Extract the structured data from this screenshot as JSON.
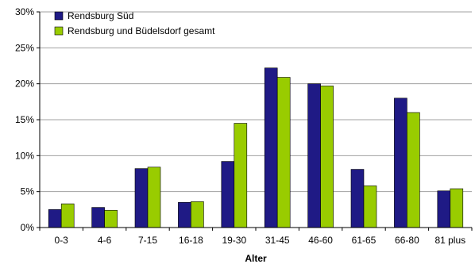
{
  "chart_data": {
    "type": "bar",
    "title": "",
    "xlabel": "Alter",
    "ylabel": "",
    "ylim": [
      0,
      30
    ],
    "y_ticks": [
      0,
      5,
      10,
      15,
      20,
      25,
      30
    ],
    "y_tick_format": "percent",
    "grid": true,
    "legend_position": "top-left",
    "categories": [
      "0-3",
      "4-6",
      "7-15",
      "16-18",
      "19-30",
      "31-45",
      "46-60",
      "61-65",
      "66-80",
      "81 plus"
    ],
    "series": [
      {
        "name": "Rendsburg Süd",
        "color": "#1f1a85",
        "values": [
          2.5,
          2.8,
          8.2,
          3.5,
          9.2,
          22.2,
          20.0,
          8.1,
          18.0,
          5.1
        ]
      },
      {
        "name": "Rendsburg und Büdelsdorf gesamt",
        "color": "#99cc00",
        "values": [
          3.3,
          2.4,
          8.4,
          3.6,
          14.5,
          20.9,
          19.7,
          5.8,
          16.0,
          5.4
        ]
      }
    ]
  }
}
